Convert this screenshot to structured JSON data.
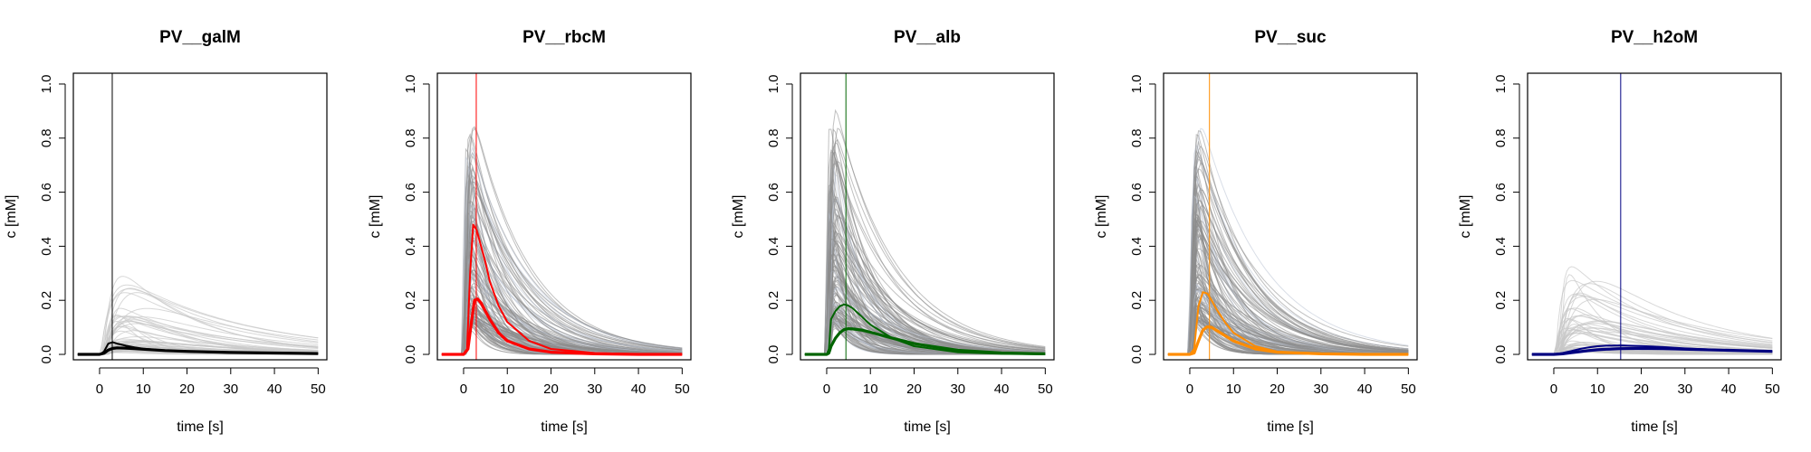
{
  "figure": {
    "background": "#ffffff"
  },
  "chart_data": [
    {
      "type": "line",
      "title": "PV__galM",
      "xlabel": "time [s]",
      "ylabel": "c [mM]",
      "xlim": [
        -6,
        52
      ],
      "ylim": [
        -0.02,
        1.04
      ],
      "xticks": [
        0,
        10,
        20,
        30,
        40,
        50
      ],
      "xtick_labels": [
        "0",
        "10",
        "20",
        "30",
        "40",
        "50"
      ],
      "yticks": [
        0.0,
        0.2,
        0.4,
        0.6,
        0.8,
        1.0
      ],
      "ytick_labels": [
        "0.0",
        "0.2",
        "0.4",
        "0.6",
        "0.8",
        "1.0"
      ],
      "grid": false,
      "accent_color": "#000000",
      "vline_x": 2.9,
      "bg_style": "light",
      "series": [
        {
          "x": [
            -5,
            0,
            1,
            2,
            3,
            4,
            6,
            8,
            10,
            15,
            20,
            30,
            40,
            50
          ],
          "y": [
            0,
            0,
            0.01,
            0.04,
            0.045,
            0.04,
            0.032,
            0.026,
            0.021,
            0.014,
            0.01,
            0.006,
            0.004,
            0.003
          ]
        },
        {
          "x": [
            -5,
            0,
            1,
            2,
            3,
            4,
            6,
            8,
            10,
            15,
            20,
            30,
            40,
            50
          ],
          "y": [
            0,
            0,
            0.004,
            0.016,
            0.022,
            0.024,
            0.023,
            0.021,
            0.019,
            0.014,
            0.011,
            0.007,
            0.005,
            0.003
          ]
        }
      ]
    },
    {
      "type": "line",
      "title": "PV__rbcM",
      "xlabel": "time [s]",
      "ylabel": "c [mM]",
      "xlim": [
        -6,
        52
      ],
      "ylim": [
        -0.02,
        1.04
      ],
      "xticks": [
        0,
        10,
        20,
        30,
        40,
        50
      ],
      "xtick_labels": [
        "0",
        "10",
        "20",
        "30",
        "40",
        "50"
      ],
      "yticks": [
        0.0,
        0.2,
        0.4,
        0.6,
        0.8,
        1.0
      ],
      "ytick_labels": [
        "0.0",
        "0.2",
        "0.4",
        "0.6",
        "0.8",
        "1.0"
      ],
      "grid": false,
      "accent_color": "#ff0000",
      "vline_x": 2.9,
      "bg_style": "dense",
      "series": [
        {
          "x": [
            -5,
            0,
            0.8,
            1.5,
            2.2,
            3,
            4,
            5,
            6,
            8,
            10,
            15,
            20,
            30,
            40,
            50
          ],
          "y": [
            0,
            0,
            0.02,
            0.3,
            0.48,
            0.46,
            0.4,
            0.34,
            0.27,
            0.18,
            0.12,
            0.05,
            0.02,
            0.005,
            0.001,
            0
          ]
        },
        {
          "x": [
            -5,
            0,
            1,
            1.8,
            2.5,
            3.2,
            4,
            5,
            6,
            8,
            10,
            15,
            20,
            30,
            40,
            50
          ],
          "y": [
            0,
            0,
            0.02,
            0.12,
            0.2,
            0.205,
            0.19,
            0.16,
            0.13,
            0.08,
            0.05,
            0.02,
            0.008,
            0.002,
            0,
            0
          ]
        }
      ]
    },
    {
      "type": "line",
      "title": "PV__alb",
      "xlabel": "time [s]",
      "ylabel": "c [mM]",
      "xlim": [
        -6,
        52
      ],
      "ylim": [
        -0.02,
        1.04
      ],
      "xticks": [
        0,
        10,
        20,
        30,
        40,
        50
      ],
      "xtick_labels": [
        "0",
        "10",
        "20",
        "30",
        "40",
        "50"
      ],
      "yticks": [
        0.0,
        0.2,
        0.4,
        0.6,
        0.8,
        1.0
      ],
      "ytick_labels": [
        "0.0",
        "0.2",
        "0.4",
        "0.6",
        "0.8",
        "1.0"
      ],
      "grid": false,
      "accent_color": "#006400",
      "vline_x": 4.4,
      "bg_style": "dense",
      "series": [
        {
          "x": [
            -5,
            0,
            0.5,
            1,
            2,
            3,
            4,
            5,
            6,
            8,
            10,
            15,
            20,
            30,
            40,
            50
          ],
          "y": [
            0,
            0,
            0.02,
            0.13,
            0.16,
            0.178,
            0.185,
            0.18,
            0.17,
            0.14,
            0.11,
            0.06,
            0.03,
            0.008,
            0.002,
            0
          ]
        },
        {
          "x": [
            -5,
            0,
            0.5,
            1,
            2,
            3,
            4,
            5,
            6,
            8,
            10,
            15,
            20,
            30,
            40,
            50
          ],
          "y": [
            0,
            0,
            0.005,
            0.03,
            0.06,
            0.08,
            0.092,
            0.095,
            0.094,
            0.09,
            0.082,
            0.06,
            0.04,
            0.015,
            0.005,
            0.002
          ]
        }
      ]
    },
    {
      "type": "line",
      "title": "PV__suc",
      "xlabel": "time [s]",
      "ylabel": "c [mM]",
      "xlim": [
        -6,
        52
      ],
      "ylim": [
        -0.02,
        1.04
      ],
      "xticks": [
        0,
        10,
        20,
        30,
        40,
        50
      ],
      "xtick_labels": [
        "0",
        "10",
        "20",
        "30",
        "40",
        "50"
      ],
      "yticks": [
        0.0,
        0.2,
        0.4,
        0.6,
        0.8,
        1.0
      ],
      "ytick_labels": [
        "0.0",
        "0.2",
        "0.4",
        "0.6",
        "0.8",
        "1.0"
      ],
      "grid": false,
      "accent_color": "#ff8c00",
      "vline_x": 4.5,
      "bg_style": "dense",
      "series": [
        {
          "x": [
            -5,
            0,
            1,
            2,
            3,
            4,
            5,
            6,
            8,
            10,
            15,
            20,
            30,
            40,
            50
          ],
          "y": [
            0,
            0,
            0.02,
            0.18,
            0.23,
            0.225,
            0.2,
            0.17,
            0.12,
            0.08,
            0.03,
            0.01,
            0.002,
            0,
            0
          ]
        },
        {
          "x": [
            -5,
            0,
            1,
            2,
            3,
            4,
            5,
            6,
            8,
            10,
            15,
            20,
            30,
            40,
            50
          ],
          "y": [
            0,
            0,
            0.005,
            0.05,
            0.09,
            0.102,
            0.1,
            0.09,
            0.07,
            0.05,
            0.02,
            0.008,
            0.002,
            0,
            0
          ]
        }
      ]
    },
    {
      "type": "line",
      "title": "PV__h2oM",
      "xlabel": "time [s]",
      "ylabel": "c [mM]",
      "xlim": [
        -6,
        52
      ],
      "ylim": [
        -0.02,
        1.04
      ],
      "xticks": [
        0,
        10,
        20,
        30,
        40,
        50
      ],
      "xtick_labels": [
        "0",
        "10",
        "20",
        "30",
        "40",
        "50"
      ],
      "yticks": [
        0.0,
        0.2,
        0.4,
        0.6,
        0.8,
        1.0
      ],
      "ytick_labels": [
        "0.0",
        "0.2",
        "0.4",
        "0.6",
        "0.8",
        "1.0"
      ],
      "grid": false,
      "accent_color": "#000080",
      "vline_x": 15.3,
      "bg_style": "light",
      "series": [
        {
          "x": [
            -5,
            0,
            2,
            4,
            6,
            8,
            10,
            12,
            15,
            20,
            25,
            30,
            40,
            50
          ],
          "y": [
            0,
            0,
            0.005,
            0.012,
            0.02,
            0.026,
            0.03,
            0.032,
            0.033,
            0.031,
            0.027,
            0.022,
            0.015,
            0.01
          ]
        },
        {
          "x": [
            -5,
            0,
            2,
            4,
            6,
            8,
            10,
            12,
            15,
            20,
            25,
            30,
            40,
            50
          ],
          "y": [
            0,
            0,
            0.002,
            0.006,
            0.01,
            0.014,
            0.017,
            0.019,
            0.021,
            0.022,
            0.021,
            0.019,
            0.015,
            0.011
          ]
        }
      ]
    }
  ]
}
